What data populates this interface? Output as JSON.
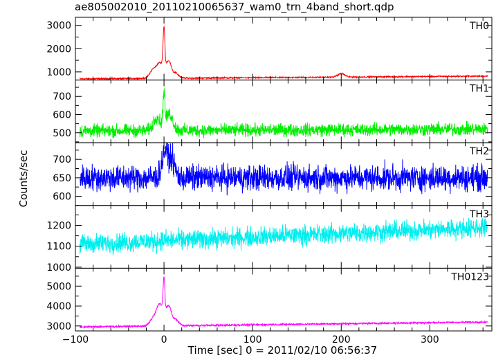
{
  "title": "ae805002010_20110210065637_wam0_trn_4band_short.qdp",
  "xlabel": "Time [sec] 0 = 2011/02/10 06:56:37",
  "ylabel": "Counts/sec",
  "chart_data": [
    {
      "type": "line",
      "name": "TH0",
      "color": "#ff0000",
      "xlim": [
        -100,
        370
      ],
      "ylim": [
        650,
        3350
      ],
      "yticks": [
        1000,
        2000,
        3000
      ],
      "baseline": {
        "start": 700,
        "end": 820,
        "noise": 25
      },
      "features": [
        {
          "x": -12,
          "y": 1150
        },
        {
          "x": -5,
          "y": 1500
        },
        {
          "x": 0,
          "y": 3300
        },
        {
          "x": 5,
          "y": 1600
        },
        {
          "x": 12,
          "y": 1000
        },
        {
          "x": 200,
          "y": 950
        }
      ]
    },
    {
      "type": "line",
      "name": "TH1",
      "color": "#00ee00",
      "xlim": [
        -100,
        370
      ],
      "ylim": [
        445,
        790
      ],
      "yticks": [
        500,
        600,
        700
      ],
      "baseline": {
        "start": 510,
        "end": 520,
        "noise": 30
      },
      "features": [
        {
          "x": -8,
          "y": 600
        },
        {
          "x": 0,
          "y": 770
        },
        {
          "x": 6,
          "y": 620
        }
      ]
    },
    {
      "type": "line",
      "name": "TH2",
      "color": "#0000ff",
      "xlim": [
        -100,
        370
      ],
      "ylim": [
        575,
        745
      ],
      "yticks": [
        600,
        650,
        700
      ],
      "baseline": {
        "start": 650,
        "end": 650,
        "noise": 30
      },
      "features": [
        {
          "x": 2,
          "y": 740
        },
        {
          "x": 8,
          "y": 710
        }
      ]
    },
    {
      "type": "line",
      "name": "TH3",
      "color": "#00eeee",
      "xlim": [
        -100,
        370
      ],
      "ylim": [
        995,
        1295
      ],
      "yticks": [
        1000,
        1100,
        1200
      ],
      "baseline": {
        "start": 1110,
        "end": 1190,
        "noise": 40
      },
      "features": []
    },
    {
      "type": "line",
      "name": "TH0123",
      "color": "#ff00ff",
      "xlim": [
        -100,
        370
      ],
      "ylim": [
        2750,
        5900
      ],
      "yticks": [
        3000,
        4000,
        5000
      ],
      "xticks": [
        -100,
        0,
        100,
        200,
        300
      ],
      "baseline": {
        "start": 2950,
        "end": 3200,
        "noise": 40
      },
      "features": [
        {
          "x": -12,
          "y": 3400
        },
        {
          "x": -5,
          "y": 4300
        },
        {
          "x": 0,
          "y": 5800
        },
        {
          "x": 5,
          "y": 4200
        },
        {
          "x": 12,
          "y": 3400
        }
      ]
    }
  ]
}
